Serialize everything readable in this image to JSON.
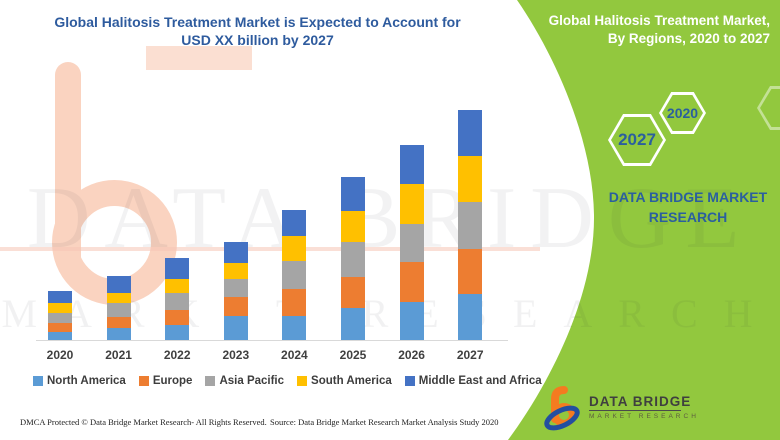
{
  "chart": {
    "title_line1": "Global Halitosis Treatment Market is Expected to Account for",
    "title_line2": "USD XX billion by 2027"
  },
  "chart_data": {
    "type": "bar",
    "stacked": true,
    "title": "Global Halitosis Treatment Market is Expected to Account for USD XX billion by 2027",
    "xlabel": "",
    "ylabel": "",
    "units": "relative height units (chart labels value as USD XX billion placeholder, no y-axis shown)",
    "grid": false,
    "legend_position": "bottom",
    "ylim": [
      0,
      240
    ],
    "categories": [
      "2020",
      "2021",
      "2022",
      "2023",
      "2024",
      "2025",
      "2026",
      "2027"
    ],
    "series": [
      {
        "name": "North America",
        "color": "#5B9BD5",
        "values": [
          8,
          12,
          15,
          24,
          24,
          32,
          38,
          46
        ]
      },
      {
        "name": "Europe",
        "color": "#ED7D31",
        "values": [
          9,
          11,
          15,
          19,
          27,
          31,
          40,
          45
        ]
      },
      {
        "name": "Asia Pacific",
        "color": "#A5A5A5",
        "values": [
          10,
          14,
          17,
          18,
          28,
          35,
          38,
          47
        ]
      },
      {
        "name": "South America",
        "color": "#FFC000",
        "values": [
          10,
          10,
          14,
          16,
          25,
          31,
          40,
          46
        ]
      },
      {
        "name": "Middle East and Africa",
        "color": "#4472C4",
        "values": [
          12,
          17,
          21,
          21,
          26,
          34,
          39,
          46
        ]
      }
    ]
  },
  "side_panel": {
    "title_line1": "Global Halitosis Treatment Market,",
    "title_line2": "By Regions, 2020 to 2027",
    "hexagons": [
      {
        "year": "2027"
      },
      {
        "year": "2020"
      }
    ],
    "brand": "DATA BRIDGE MARKET RESEARCH",
    "accent_green": "#92C83E",
    "accent_blue": "#2B5F9E"
  },
  "logo": {
    "name": "DATA BRIDGE",
    "subtitle": "MARKET RESEARCH"
  },
  "footer": {
    "dmca": "DMCA Protected © Data Bridge Market Research- All Rights Reserved.",
    "source": "Source: Data Bridge Market Research Market Analysis Study 2020"
  },
  "watermark": {
    "line1": "DATA BRIDGE",
    "line2": "MARKET RESEARCH"
  }
}
